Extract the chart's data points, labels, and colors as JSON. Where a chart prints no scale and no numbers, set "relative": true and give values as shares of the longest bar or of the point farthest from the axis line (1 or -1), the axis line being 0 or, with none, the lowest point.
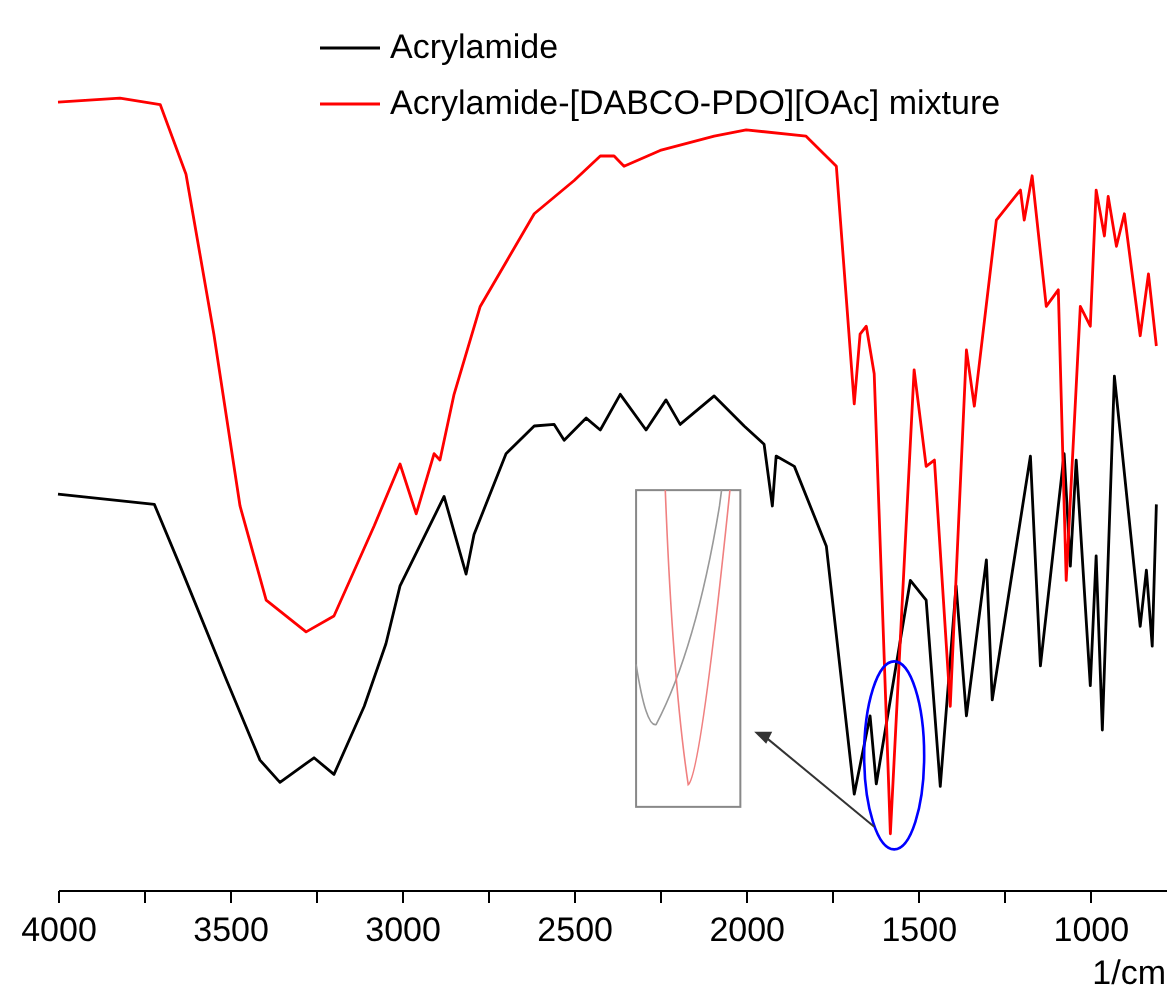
{
  "chart_data": {
    "type": "line",
    "relative": true,
    "xlabel": "1/cm",
    "legend": "top",
    "xlim": [
      4000,
      780
    ],
    "xticks": [
      4000,
      {
        "value": 3750,
        "label": null
      },
      3500,
      {
        "value": 3250,
        "label": null
      },
      3000,
      {
        "value": 2750,
        "label": null
      },
      2500,
      {
        "value": 2250,
        "label": null
      },
      2000,
      {
        "value": 1750,
        "label": null
      },
      1500,
      {
        "value": 1250,
        "label": null
      },
      1000
    ],
    "series": [
      {
        "name": "Acrylamide",
        "color": "#000000",
        "x": [
          4000,
          3720,
          3645,
          3510,
          3413,
          3355,
          3256,
          3198,
          3110,
          3047,
          3006,
          2878,
          2814,
          2791,
          2698,
          2616,
          2558,
          2529,
          2465,
          2424,
          2366,
          2291,
          2233,
          2192,
          2093,
          2006,
          1948,
          1924,
          1913,
          1860,
          1767,
          1686,
          1640,
          1622,
          1523,
          1477,
          1436,
          1390,
          1360,
          1302,
          1285,
          1174,
          1145,
          1076,
          1058,
          1041,
          1000,
          983,
          965,
          930,
          855,
          837,
          820,
          808
        ],
        "values": [
          0.5,
          0.487,
          0.409,
          0.265,
          0.164,
          0.136,
          0.167,
          0.146,
          0.232,
          0.311,
          0.384,
          0.497,
          0.399,
          0.449,
          0.551,
          0.586,
          0.588,
          0.568,
          0.596,
          0.581,
          0.626,
          0.581,
          0.619,
          0.588,
          0.624,
          0.586,
          0.563,
          0.485,
          0.548,
          0.535,
          0.434,
          0.121,
          0.22,
          0.134,
          0.391,
          0.366,
          0.131,
          0.384,
          0.22,
          0.417,
          0.24,
          0.548,
          0.283,
          0.551,
          0.409,
          0.543,
          0.258,
          0.422,
          0.202,
          0.649,
          0.333,
          0.404,
          0.308,
          0.487
        ]
      },
      {
        "name": "Acrylamide-[DABCO-PDO][OAc] mixture",
        "color": "#ff0000",
        "x": [
          4000,
          3820,
          3703,
          3628,
          3547,
          3471,
          3395,
          3279,
          3198,
          3081,
          3006,
          2959,
          2907,
          2890,
          2849,
          2773,
          2616,
          2500,
          2424,
          2384,
          2355,
          2250,
          2093,
          2000,
          1826,
          1738,
          1686,
          1669,
          1651,
          1628,
          1581,
          1512,
          1477,
          1453,
          1407,
          1360,
          1337,
          1273,
          1203,
          1192,
          1169,
          1128,
          1093,
          1070,
          1029,
          1000,
          983,
          959,
          948,
          924,
          901,
          855,
          831,
          808
        ],
        "values": [
          0.995,
          1,
          0.992,
          0.904,
          0.702,
          0.485,
          0.366,
          0.326,
          0.346,
          0.46,
          0.538,
          0.475,
          0.551,
          0.543,
          0.626,
          0.737,
          0.854,
          0.896,
          0.927,
          0.927,
          0.914,
          0.934,
          0.952,
          0.96,
          0.952,
          0.914,
          0.614,
          0.702,
          0.712,
          0.652,
          0.071,
          0.657,
          0.535,
          0.543,
          0.232,
          0.682,
          0.611,
          0.846,
          0.884,
          0.846,
          0.902,
          0.737,
          0.758,
          0.391,
          0.737,
          0.712,
          0.884,
          0.826,
          0.876,
          0.813,
          0.854,
          0.7,
          0.778,
          0.687
        ]
      }
    ]
  }
}
